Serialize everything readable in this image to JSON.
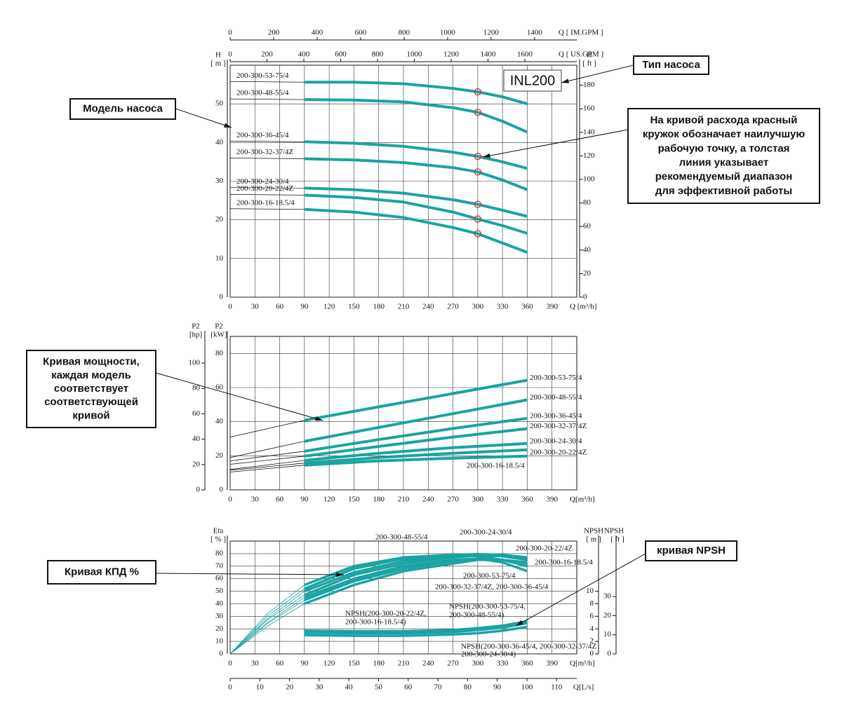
{
  "chart_data": [
    {
      "type": "line",
      "pump_type": "INL200",
      "ylabel": [
        "H",
        "[ m ]"
      ],
      "y2label": [
        "H",
        "[ ft ]"
      ],
      "xlabel": "Q [m³/h]",
      "xlim": [
        0,
        420
      ],
      "xticks": [
        0,
        30,
        60,
        90,
        120,
        150,
        180,
        210,
        240,
        270,
        300,
        330,
        360,
        390
      ],
      "ylim": [
        0,
        60
      ],
      "yticks": [
        0,
        10,
        20,
        30,
        40,
        50
      ],
      "y2lim": [
        0,
        197
      ],
      "y2ticks": [
        0,
        20,
        40,
        60,
        80,
        100,
        120,
        140,
        160,
        180
      ],
      "top_axes": [
        {
          "label": "Q [ IM.GPM ]",
          "xlim": [
            0,
            1594
          ],
          "xticks": [
            0,
            200,
            400,
            600,
            800,
            1000,
            1200,
            1400
          ]
        },
        {
          "label": "Q [ US.GPM ]",
          "xlim": [
            0,
            1882
          ],
          "xticks": [
            0,
            200,
            400,
            600,
            800,
            1000,
            1200,
            1400,
            1600
          ]
        }
      ],
      "best_x": 300,
      "best_color": "#e03030",
      "x": [
        90,
        150,
        210,
        270,
        300,
        330,
        360
      ],
      "series": [
        {
          "name": "200-300-53-75/4",
          "color": "#1aa3a3",
          "values": [
            55.6,
            55.6,
            55.2,
            54,
            53.1,
            51.8,
            50
          ]
        },
        {
          "name": "200-300-48-55/4",
          "color": "#1aa3a3",
          "values": [
            51.1,
            51,
            50.5,
            49,
            47.8,
            45.5,
            42.7
          ]
        },
        {
          "name": "200-300-36-45/4",
          "color": "#1aa3a3",
          "values": [
            40.2,
            39.8,
            39,
            37.5,
            36.4,
            35,
            33.3
          ]
        },
        {
          "name": "200-300-32-37/4Z",
          "color": "#1aa3a3",
          "values": [
            35.8,
            35.5,
            34.8,
            33.5,
            32.4,
            30.3,
            27.8
          ]
        },
        {
          "name": "200-300-24-30/4",
          "color": "#1aa3a3",
          "values": [
            28.2,
            27.8,
            26.9,
            25.2,
            24,
            22.5,
            20.9
          ]
        },
        {
          "name": "200-300-20-22/4Z",
          "color": "#1aa3a3",
          "values": [
            26.4,
            25.8,
            24.6,
            22,
            20.2,
            18.5,
            16.5
          ]
        },
        {
          "name": "200-300-16-18.5/4",
          "color": "#1aa3a3",
          "values": [
            22.7,
            22,
            20.6,
            18,
            16.4,
            14,
            11.6
          ]
        }
      ]
    },
    {
      "type": "line",
      "ylabel": [
        "P2",
        "[kW]"
      ],
      "y2label": [
        "P2",
        "[hp]"
      ],
      "xlabel": "Q[m³/h]",
      "xlim": [
        0,
        420
      ],
      "xticks": [
        0,
        30,
        60,
        90,
        120,
        150,
        180,
        210,
        240,
        270,
        300,
        330,
        360,
        390
      ],
      "ylim": [
        0,
        90
      ],
      "yticks": [
        0,
        20,
        40,
        60,
        80
      ],
      "y2lim": [
        0,
        121
      ],
      "y2ticks": [
        0,
        20,
        40,
        60,
        80,
        100
      ],
      "x": [
        0,
        90,
        180,
        270,
        360
      ],
      "series": [
        {
          "name": "200-300-53-75/4",
          "color": "#1aa3a3",
          "values": [
            31,
            40.8,
            48.7,
            56.5,
            64.3
          ]
        },
        {
          "name": "200-300-48-55/4",
          "color": "#1aa3a3",
          "values": [
            19,
            28.5,
            36.6,
            44.7,
            52.8
          ]
        },
        {
          "name": "200-300-36-45/4",
          "color": "#1aa3a3",
          "values": [
            17,
            22.7,
            29.5,
            36,
            42
          ]
        },
        {
          "name": "200-300-32-37/4Z",
          "color": "#1aa3a3",
          "values": [
            15,
            19.8,
            25.5,
            31,
            35.9
          ]
        },
        {
          "name": "200-300-24-30/4",
          "color": "#1aa3a3",
          "values": [
            12,
            17.3,
            21.5,
            24.8,
            27.2
          ]
        },
        {
          "name": "200-300-20-22/4Z",
          "color": "#1aa3a3",
          "values": [
            11.5,
            15.7,
            19,
            21.5,
            23.5
          ]
        },
        {
          "name": "200-300-16-18.5/4",
          "color": "#1aa3a3",
          "values": [
            10.5,
            14.5,
            17,
            18.6,
            19.8
          ]
        }
      ]
    },
    {
      "type": "line",
      "ylabel": [
        "Eta",
        "[ % ]"
      ],
      "y2label": [
        "NPSH",
        "[ m ]"
      ],
      "y3label": [
        "NPSH",
        "[ ft ]"
      ],
      "xlabel": "Q[m³/h]",
      "xlim": [
        0,
        420
      ],
      "xticks": [
        0,
        30,
        60,
        90,
        120,
        150,
        180,
        210,
        240,
        270,
        300,
        330,
        360,
        390
      ],
      "ylim": [
        0,
        90
      ],
      "yticks": [
        0,
        10,
        20,
        30,
        40,
        50,
        60,
        70,
        80
      ],
      "y2lim": [
        0,
        18
      ],
      "y2ticks": [
        0,
        2,
        4,
        6,
        8,
        10
      ],
      "y3lim": [
        0,
        59
      ],
      "y3ticks": [
        0,
        10,
        20,
        30
      ],
      "bottom_axis": {
        "label": "Q[L/s]",
        "xlim": [
          0,
          116.8
        ],
        "xticks": [
          0,
          10,
          20,
          30,
          40,
          50,
          60,
          70,
          80,
          90,
          100,
          110
        ]
      },
      "curve_labels": [
        "200-300-48-55/4",
        "200-300-24-30/4",
        "200-300-20-22/4Z",
        "200-300-16-18.5/4",
        "200-300-53-75/4",
        "200-300-32-37/4Z, 200-300-36-45/4",
        "NPSH(200-300-20-22/4Z,",
        "200-300-16-18.5/4)",
        "NPSH(200-300-53-75/4,",
        "200-300-48-55/4)",
        "NPSH(200-300-36-45/4, 200-300-32-37/4Z",
        "200-300-24-30/4)"
      ],
      "x": [
        0,
        45,
        90,
        150,
        210,
        270,
        300,
        330,
        360
      ],
      "series": [
        {
          "color": "#1aa3a3",
          "values": [
            0,
            32,
            55,
            70,
            77,
            79,
            78,
            75,
            70
          ]
        },
        {
          "color": "#1aa3a3",
          "values": [
            0,
            30,
            52,
            68,
            76,
            79,
            79.5,
            78,
            75
          ]
        },
        {
          "color": "#1aa3a3",
          "values": [
            0,
            28,
            50,
            65,
            74,
            78.5,
            79.5,
            79,
            77
          ]
        },
        {
          "color": "#1aa3a3",
          "values": [
            0,
            27,
            47,
            63,
            72,
            77,
            78.5,
            78,
            75
          ]
        },
        {
          "color": "#1aa3a3",
          "values": [
            0,
            25,
            45,
            60,
            70,
            75,
            76,
            73,
            66
          ]
        },
        {
          "color": "#1aa3a3",
          "values": [
            0,
            24,
            43,
            58,
            68,
            74,
            76,
            75,
            72
          ]
        },
        {
          "color": "#1aa3a3",
          "values": [
            0,
            22,
            40,
            55,
            66,
            72,
            75,
            75,
            73
          ]
        }
      ],
      "npsh_x": [
        90,
        150,
        210,
        270,
        300,
        330,
        360
      ],
      "npsh_series": [
        {
          "color": "#1aa3a3",
          "axis": "y2",
          "values": [
            3.0,
            2.9,
            2.9,
            3.1,
            3.3,
            3.7,
            4.3
          ]
        },
        {
          "color": "#1aa3a3",
          "axis": "y2",
          "values": [
            3.4,
            3.3,
            3.3,
            3.5,
            3.8,
            4.2,
            4.9
          ]
        },
        {
          "color": "#1aa3a3",
          "axis": "y2",
          "values": [
            3.7,
            3.6,
            3.6,
            3.8,
            4.1,
            4.5,
            5.2
          ]
        }
      ]
    }
  ],
  "callouts": [
    {
      "lines": [
        "Модель насоса"
      ]
    },
    {
      "lines": [
        "Тип насоса"
      ]
    },
    {
      "lines": [
        "На кривой расхода красный",
        "кружок обозначает наилучшую",
        "рабочую точку, а толстая",
        "линия указывает",
        "рекомендуемый диапазон",
        "для эффективной работы"
      ]
    },
    {
      "lines": [
        "Кривая мощности,",
        "каждая модель",
        "соответствует",
        "соответствующей",
        "кривой"
      ]
    },
    {
      "lines": [
        "Кривая КПД %"
      ]
    },
    {
      "lines": [
        "кривая NPSH"
      ]
    }
  ]
}
